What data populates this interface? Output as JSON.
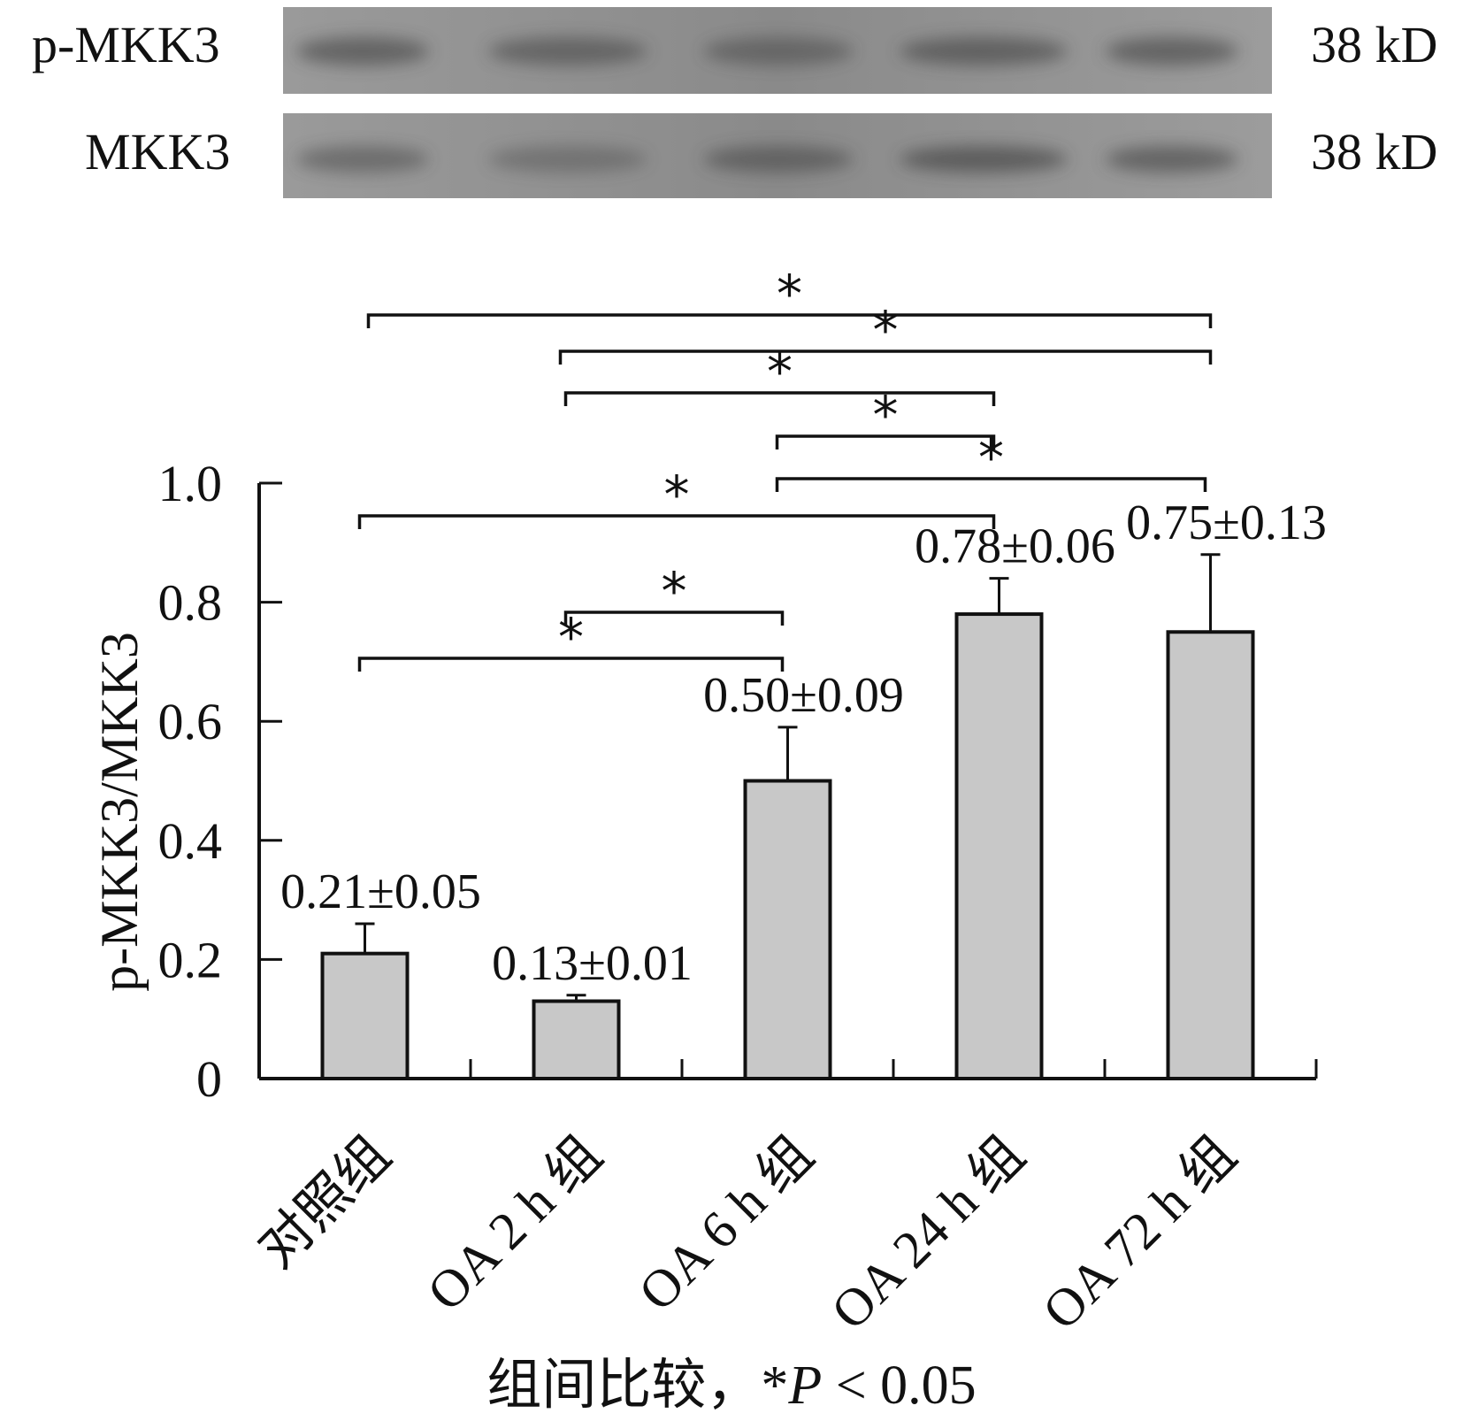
{
  "blot": {
    "rows": [
      {
        "label": "p-MKK3",
        "size": "38 kD",
        "band_intensity": [
          0.55,
          0.5,
          0.45,
          0.55,
          0.55
        ]
      },
      {
        "label": "MKK3",
        "size": "38 kD",
        "band_intensity": [
          0.45,
          0.35,
          0.5,
          0.6,
          0.55
        ]
      }
    ],
    "background_color": "#8a8a8a",
    "band_color": "#3a3a3a"
  },
  "chart_data": {
    "type": "bar",
    "categories": [
      "对照组",
      "OA 2 h 组",
      "OA 6 h 组",
      "OA 24 h 组",
      "OA 72 h 组"
    ],
    "values": [
      0.21,
      0.13,
      0.5,
      0.78,
      0.75
    ],
    "errors": [
      0.05,
      0.01,
      0.09,
      0.06,
      0.13
    ],
    "value_labels": [
      "0.21±0.05",
      "0.13±0.01",
      "0.50±0.09",
      "0.78±0.06",
      "0.75±0.13"
    ],
    "ylabel": "p-MKK3/MKK3",
    "xlabel": "组间比较，*P < 0.05",
    "xlabel_prefix": "组间比较，*",
    "xlabel_italic": "P",
    "xlabel_suffix": " < 0.05",
    "ylim": [
      0,
      1.0
    ],
    "yticks": [
      0,
      0.2,
      0.4,
      0.6,
      0.8,
      1.0
    ],
    "ytick_labels": [
      "0",
      "0.2",
      "0.4",
      "0.6",
      "0.8",
      "1.0"
    ],
    "bar_color": "#c8c8c8",
    "significance": [
      {
        "from": 0,
        "to": 4,
        "label": "*"
      },
      {
        "from": 1,
        "to": 4,
        "label": "*"
      },
      {
        "from": 1,
        "to": 3,
        "label": "*"
      },
      {
        "from": 2,
        "to": 3,
        "label": "*"
      },
      {
        "from": 2,
        "to": 4,
        "label": "*"
      },
      {
        "from": 0,
        "to": 3,
        "label": "*"
      },
      {
        "from": 1,
        "to": 2,
        "label": "*"
      },
      {
        "from": 0,
        "to": 2,
        "label": "*"
      }
    ]
  }
}
